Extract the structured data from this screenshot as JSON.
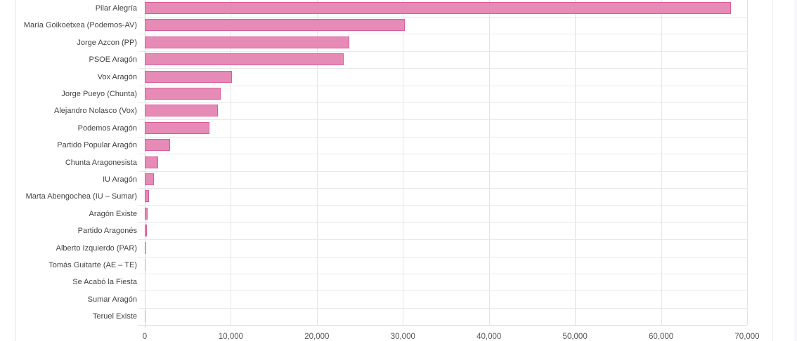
{
  "chart_data": {
    "type": "bar",
    "orientation": "horizontal",
    "title": "",
    "xlabel": "",
    "ylabel": "",
    "xlim": [
      0,
      70000
    ],
    "grid": true,
    "legend": null,
    "bar_color": "#e68ab6",
    "bar_border_color": "#db5c9c",
    "categories": [
      "Pilar Alegría",
      "María Goikoetxea  (Podemos-AV)",
      "Jorge Azcon (PP)",
      "PSOE Aragón",
      "Vox Aragón",
      "Jorge Pueyo (Chunta)",
      "Alejandro Nolasco (Vox)",
      "Podemos Aragón",
      "Partido Popular Aragón",
      "Chunta Aragonesista",
      "IU Aragón",
      "Marta Abengochea (IU – Sumar)",
      "Aragón Existe",
      "Partido Aragonés",
      "Alberto Izquierdo (PAR)",
      "Tomás Guitarte (AE – TE)",
      "Se Acabó la Fiesta",
      "Sumar Aragón",
      "Teruel Existe"
    ],
    "values": [
      68100,
      30200,
      23800,
      23100,
      10150,
      8850,
      8500,
      7500,
      2950,
      1550,
      1050,
      500,
      300,
      280,
      170,
      60,
      0,
      0,
      20
    ],
    "x_ticks": [
      "0",
      "10,000",
      "20,000",
      "30,000",
      "40,000",
      "50,000",
      "60,000",
      "70,000"
    ],
    "x_tick_values": [
      0,
      10000,
      20000,
      30000,
      40000,
      50000,
      60000,
      70000
    ]
  }
}
